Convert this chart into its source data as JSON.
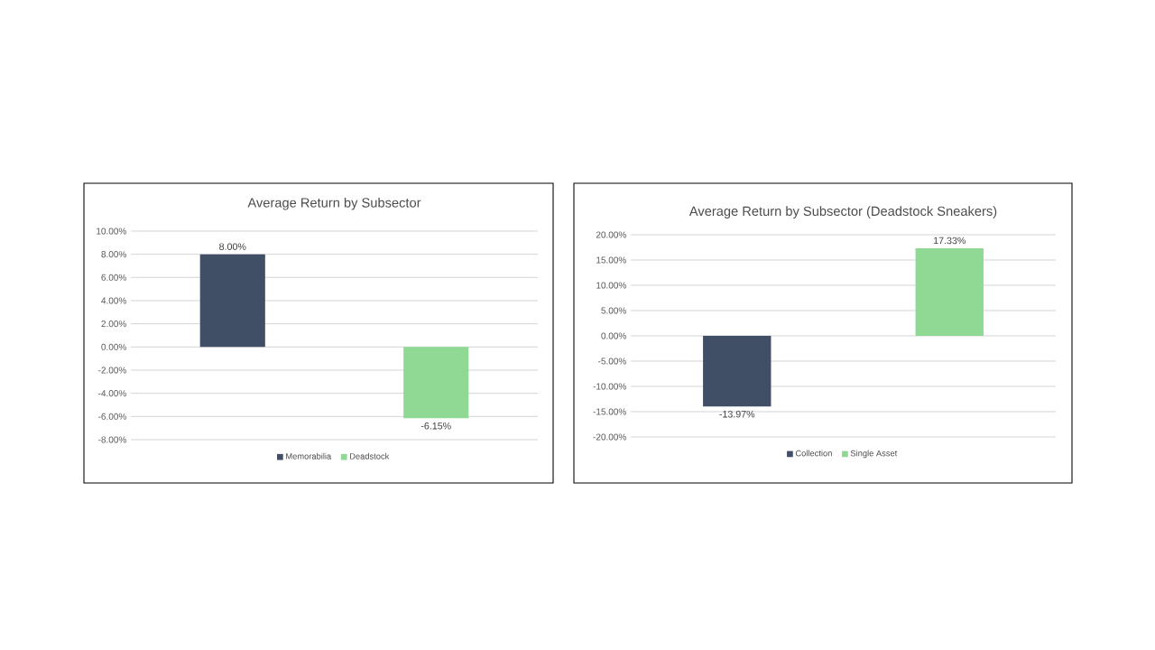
{
  "chart_data": [
    {
      "type": "bar",
      "title": "Average Return by Subsector",
      "categories": [
        null
      ],
      "series": [
        {
          "name": "Memorabilia",
          "color": "#404e66",
          "values": [
            8
          ],
          "value_labels": [
            "8.00%"
          ]
        },
        {
          "name": "Deadstock",
          "color": "#8fd994",
          "values": [
            -6.15
          ],
          "value_labels": [
            "-6.15%"
          ]
        }
      ],
      "ylim": [
        -8,
        10
      ],
      "yticks": [
        {
          "value": -8,
          "label": "-8.00%"
        },
        {
          "value": -6,
          "label": "-6.00%"
        },
        {
          "value": -4,
          "label": "-4.00%"
        },
        {
          "value": -2,
          "label": "-2.00%"
        },
        {
          "value": 0,
          "label": "0.00%"
        },
        {
          "value": 2,
          "label": "2.00%"
        },
        {
          "value": 4,
          "label": "4.00%"
        },
        {
          "value": 6,
          "label": "6.00%"
        },
        {
          "value": 8,
          "label": "8.00%"
        },
        {
          "value": 10,
          "label": "10.00%"
        }
      ],
      "grid": "y",
      "legend": "bottom"
    },
    {
      "type": "bar",
      "title": "Average Return by Subsector (Deadstock Sneakers)",
      "categories": [
        null
      ],
      "series": [
        {
          "name": "Collection",
          "color": "#404e66",
          "values": [
            -13.97
          ],
          "value_labels": [
            "-13.97%"
          ]
        },
        {
          "name": "Single Asset",
          "color": "#8fd994",
          "values": [
            17.33
          ],
          "value_labels": [
            "17.33%"
          ]
        }
      ],
      "ylim": [
        -20,
        20
      ],
      "yticks": [
        {
          "value": -20,
          "label": "-20.00%"
        },
        {
          "value": -15,
          "label": "-15.00%"
        },
        {
          "value": -10,
          "label": "-10.00%"
        },
        {
          "value": -5,
          "label": "-5.00%"
        },
        {
          "value": 0,
          "label": "0.00%"
        },
        {
          "value": 5,
          "label": "5.00%"
        },
        {
          "value": 10,
          "label": "10.00%"
        },
        {
          "value": 15,
          "label": "15.00%"
        },
        {
          "value": 20,
          "label": "20.00%"
        }
      ],
      "grid": "y",
      "legend": "bottom"
    }
  ]
}
